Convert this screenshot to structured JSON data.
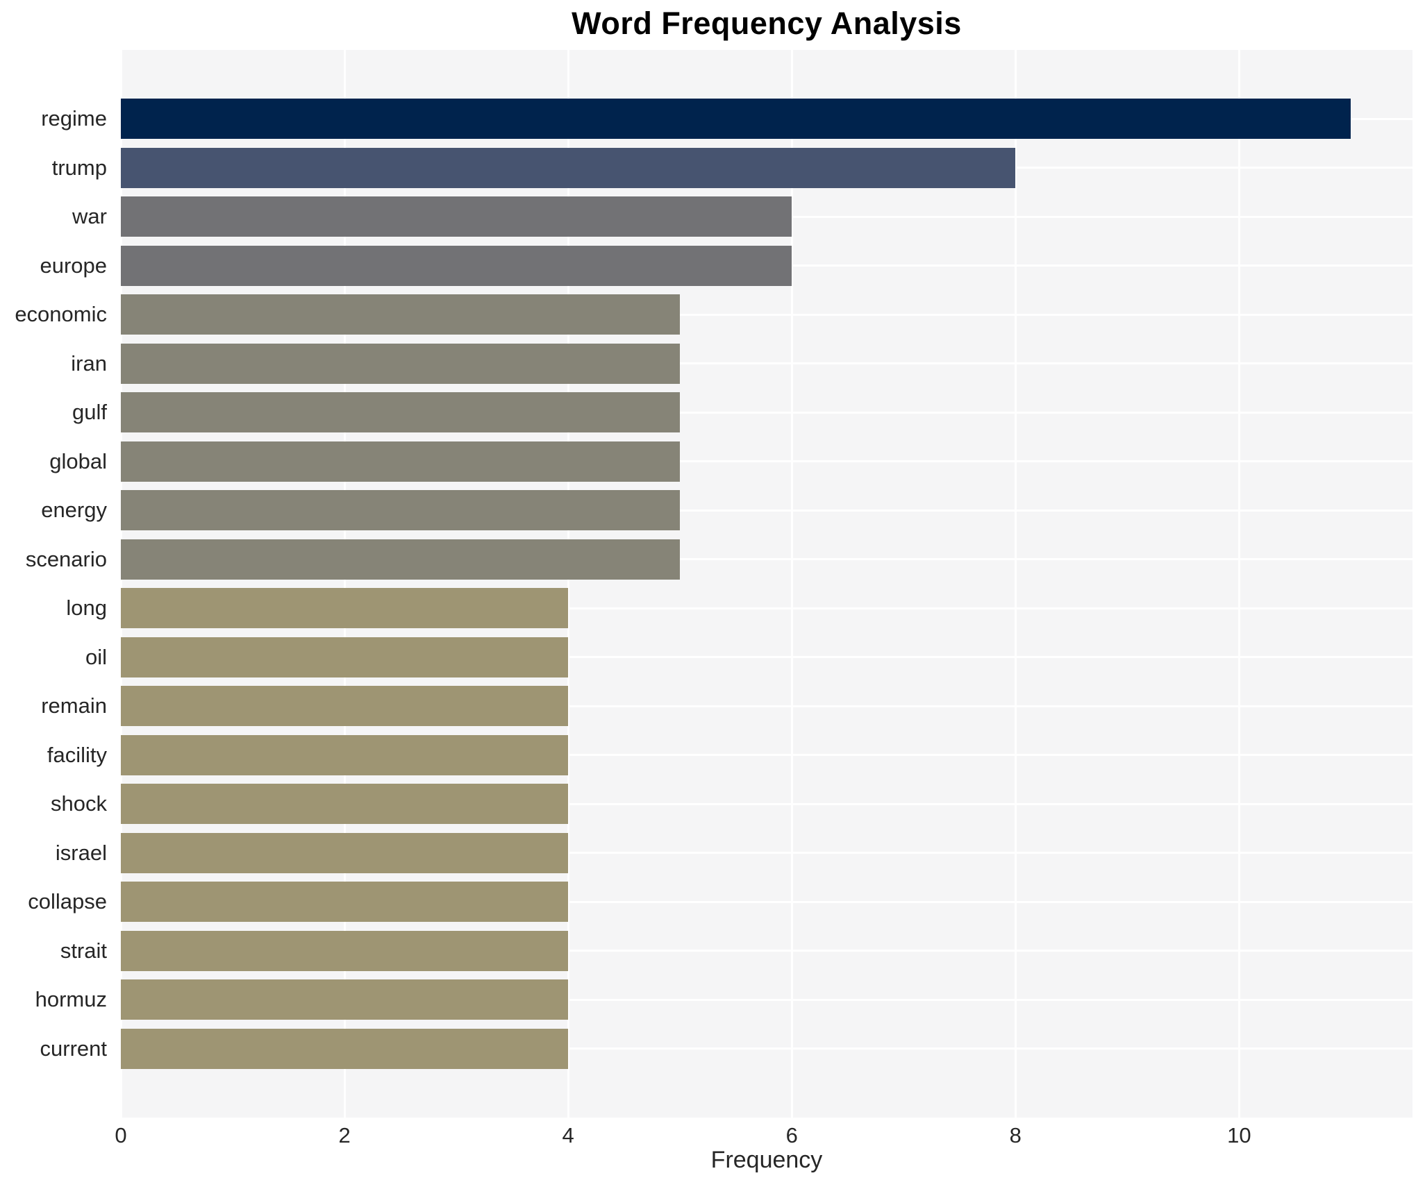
{
  "chart_data": {
    "type": "bar",
    "orientation": "horizontal",
    "title": "Word Frequency Analysis",
    "xlabel": "Frequency",
    "ylabel": "",
    "categories": [
      "regime",
      "trump",
      "war",
      "europe",
      "economic",
      "iran",
      "gulf",
      "global",
      "energy",
      "scenario",
      "long",
      "oil",
      "remain",
      "facility",
      "shock",
      "israel",
      "collapse",
      "strait",
      "hormuz",
      "current"
    ],
    "values": [
      11,
      8,
      6,
      6,
      5,
      5,
      5,
      5,
      5,
      5,
      4,
      4,
      4,
      4,
      4,
      4,
      4,
      4,
      4,
      4
    ],
    "bar_colors": [
      "#00234d",
      "#475470",
      "#727275",
      "#727275",
      "#868477",
      "#868477",
      "#868477",
      "#868477",
      "#868477",
      "#868477",
      "#9e9573",
      "#9e9573",
      "#9e9573",
      "#9e9573",
      "#9e9573",
      "#9e9573",
      "#9e9573",
      "#9e9573",
      "#9e9573",
      "#9e9573"
    ],
    "x_ticks": [
      0,
      2,
      4,
      6,
      8,
      10
    ],
    "xlim": [
      0,
      11.55
    ],
    "grid": true,
    "legend": "none",
    "plot_background": "#f5f5f6",
    "grid_color": "#ffffff",
    "text_color": "#262626"
  }
}
